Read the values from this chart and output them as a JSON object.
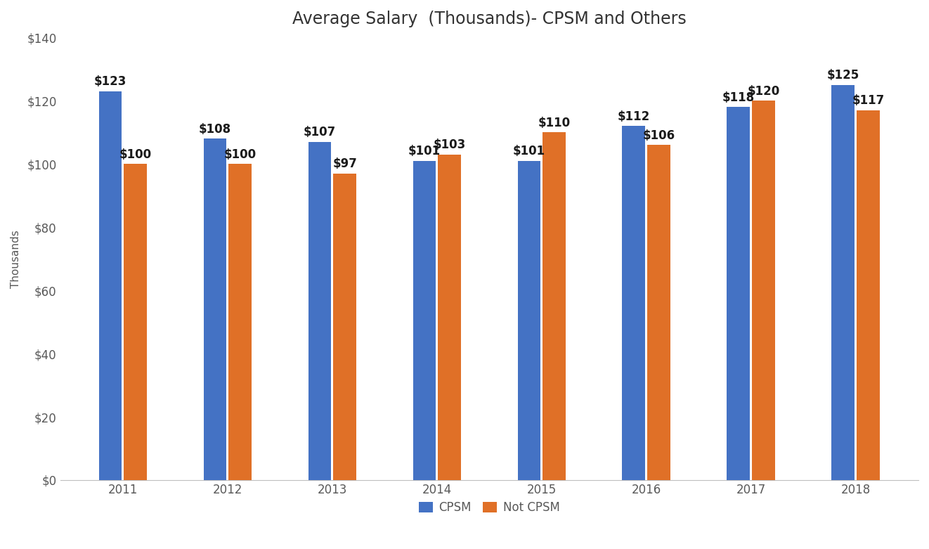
{
  "title": "Average Salary  (Thousands)- CPSM and Others",
  "ylabel": "Thousands",
  "years": [
    "2011",
    "2012",
    "2013",
    "2014",
    "2015",
    "2016",
    "2017",
    "2018"
  ],
  "cpsm_values": [
    123,
    108,
    107,
    101,
    101,
    112,
    118,
    125
  ],
  "non_cpsm_values": [
    100,
    100,
    97,
    103,
    110,
    106,
    120,
    117
  ],
  "cpsm_color": "#4472C4",
  "non_cpsm_color": "#E07027",
  "background_color": "#FFFFFF",
  "ylim": [
    0,
    140
  ],
  "yticks": [
    0,
    20,
    40,
    60,
    80,
    100,
    120,
    140
  ],
  "legend_labels": [
    "CPSM",
    "Not CPSM"
  ],
  "bar_width": 0.22,
  "title_fontsize": 17,
  "tick_fontsize": 12,
  "label_fontsize": 11,
  "legend_fontsize": 12,
  "annotation_fontsize": 12,
  "tick_color": "#595959",
  "spine_color": "#BFBFBF"
}
